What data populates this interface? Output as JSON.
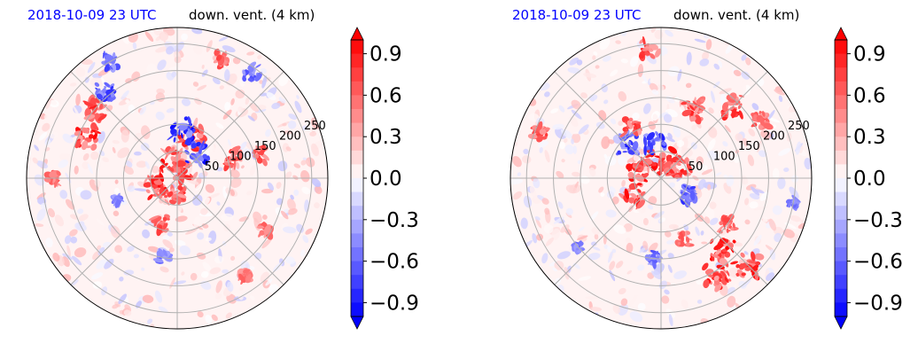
{
  "chart_data": [
    {
      "type": "heatmap",
      "projection": "polar",
      "title_left": "2018-10-09 23 UTC",
      "title_right": "down. vent. (4 km)",
      "radial_ticks": [
        50,
        100,
        150,
        200,
        250
      ],
      "angular_gridlines_deg": [
        0,
        45,
        90,
        135,
        180,
        225,
        270,
        315
      ],
      "colorbar": {
        "ticks": [
          "0.9",
          "0.6",
          "0.3",
          "0.0",
          "−0.3",
          "−0.6",
          "−0.9"
        ],
        "range": [
          -1.0,
          1.0
        ],
        "extend": "both",
        "colormap": "bwr"
      },
      "features": [
        {
          "r": 20,
          "theta": 45,
          "sign": 1,
          "strength": 0.8
        },
        {
          "r": 35,
          "theta": 110,
          "sign": 1,
          "strength": 0.9
        },
        {
          "r": 45,
          "theta": 200,
          "sign": 1,
          "strength": 0.9
        },
        {
          "r": 30,
          "theta": 260,
          "sign": 1,
          "strength": 0.8
        },
        {
          "r": 80,
          "theta": 70,
          "sign": 1,
          "strength": 1.0
        },
        {
          "r": 90,
          "theta": 85,
          "sign": -1,
          "strength": 1.0
        },
        {
          "r": 60,
          "theta": 50,
          "sign": -1,
          "strength": 0.9
        },
        {
          "r": 110,
          "theta": 20,
          "sign": 1,
          "strength": 0.7
        },
        {
          "r": 160,
          "theta": 15,
          "sign": 1,
          "strength": 0.6
        },
        {
          "r": 185,
          "theta": 155,
          "sign": 1,
          "strength": 0.9
        },
        {
          "r": 200,
          "theta": 140,
          "sign": 1,
          "strength": 0.8
        },
        {
          "r": 210,
          "theta": 130,
          "sign": -1,
          "strength": 0.7
        },
        {
          "r": 250,
          "theta": 120,
          "sign": -1,
          "strength": 0.6
        },
        {
          "r": 150,
          "theta": 260,
          "sign": -1,
          "strength": 0.4
        },
        {
          "r": 120,
          "theta": 200,
          "sign": -1,
          "strength": 0.3
        },
        {
          "r": 230,
          "theta": 180,
          "sign": 1,
          "strength": 0.5
        },
        {
          "r": 90,
          "theta": 250,
          "sign": 1,
          "strength": 0.6
        },
        {
          "r": 235,
          "theta": 70,
          "sign": 1,
          "strength": 0.6
        },
        {
          "r": 190,
          "theta": 330,
          "sign": 1,
          "strength": 0.5
        },
        {
          "r": 220,
          "theta": 305,
          "sign": 1,
          "strength": 0.4
        },
        {
          "r": 240,
          "theta": 55,
          "sign": -1,
          "strength": 0.6
        }
      ]
    },
    {
      "type": "heatmap",
      "projection": "polar",
      "title_left": "2018-10-09 23 UTC",
      "title_right": "down. vent. (4 km)",
      "radial_ticks": [
        50,
        100,
        150,
        200,
        250
      ],
      "angular_gridlines_deg": [
        0,
        45,
        90,
        135,
        180,
        225,
        270,
        315
      ],
      "colorbar": {
        "ticks": [
          "0.9",
          "0.6",
          "0.3",
          "0.0",
          "−0.3",
          "−0.6",
          "−0.9"
        ],
        "range": [
          -1.0,
          1.0
        ],
        "extend": "both",
        "colormap": "bwr"
      },
      "features": [
        {
          "r": 30,
          "theta": 90,
          "sign": 1,
          "strength": 1.0
        },
        {
          "r": 45,
          "theta": 160,
          "sign": 1,
          "strength": 0.9
        },
        {
          "r": 60,
          "theta": 210,
          "sign": 1,
          "strength": 0.9
        },
        {
          "r": 40,
          "theta": 30,
          "sign": 1,
          "strength": 0.8
        },
        {
          "r": 65,
          "theta": 100,
          "sign": -1,
          "strength": 0.8
        },
        {
          "r": 90,
          "theta": 135,
          "sign": -1,
          "strength": 0.8
        },
        {
          "r": 110,
          "theta": 120,
          "sign": 1,
          "strength": 0.7
        },
        {
          "r": 140,
          "theta": 65,
          "sign": 1,
          "strength": 0.8
        },
        {
          "r": 190,
          "theta": 45,
          "sign": 1,
          "strength": 0.8
        },
        {
          "r": 215,
          "theta": 30,
          "sign": 1,
          "strength": 0.6
        },
        {
          "r": 180,
          "theta": 310,
          "sign": 1,
          "strength": 1.0
        },
        {
          "r": 210,
          "theta": 300,
          "sign": 1,
          "strength": 1.0
        },
        {
          "r": 230,
          "theta": 315,
          "sign": 1,
          "strength": 0.9
        },
        {
          "r": 150,
          "theta": 325,
          "sign": 1,
          "strength": 0.6
        },
        {
          "r": 120,
          "theta": 290,
          "sign": 1,
          "strength": 0.5
        },
        {
          "r": 240,
          "theta": 160,
          "sign": 1,
          "strength": 0.6
        },
        {
          "r": 200,
          "theta": 220,
          "sign": -1,
          "strength": 0.4
        },
        {
          "r": 150,
          "theta": 265,
          "sign": -1,
          "strength": 0.5
        },
        {
          "r": 60,
          "theta": 330,
          "sign": -1,
          "strength": 0.7
        },
        {
          "r": 240,
          "theta": 95,
          "sign": 1,
          "strength": 0.7
        },
        {
          "r": 250,
          "theta": 350,
          "sign": -1,
          "strength": 0.4
        }
      ]
    }
  ]
}
